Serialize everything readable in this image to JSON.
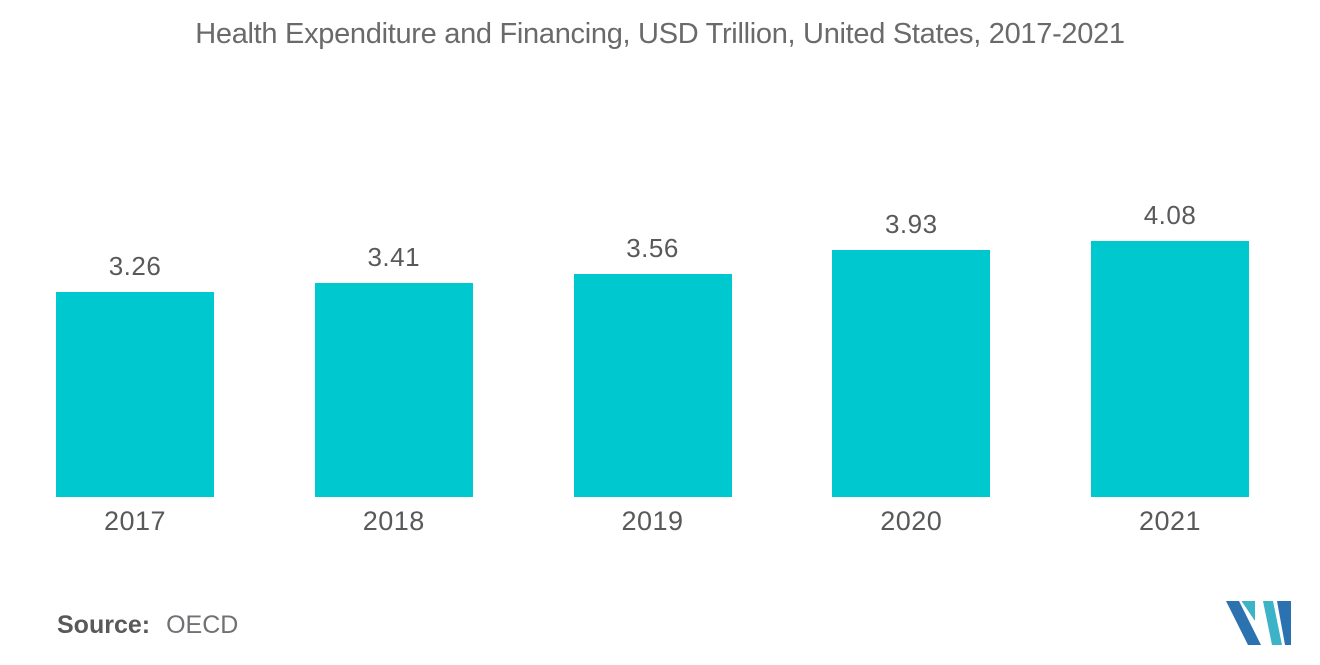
{
  "title": "Health Expenditure and Financing, USD Trillion, United States, 2017-2021",
  "source": {
    "label": "Source:",
    "value": "OECD"
  },
  "colors": {
    "bar": "#00c8cf",
    "title_text": "#6a6a6a",
    "label_text": "#58595b",
    "logo_blue": "#2d72b0",
    "logo_teal": "#3cb3c6"
  },
  "logo": {
    "name": "mordor-intelligence-logo"
  },
  "chart_data": {
    "type": "bar",
    "title": "Health Expenditure and Financing, USD Trillion, United States, 2017-2021",
    "categories": [
      "2017",
      "2018",
      "2019",
      "2020",
      "2021"
    ],
    "values": [
      3.26,
      3.41,
      3.56,
      3.93,
      4.08
    ],
    "value_labels": [
      "3.26",
      "3.41",
      "3.56",
      "3.93",
      "4.08"
    ],
    "xlabel": "",
    "ylabel": "",
    "ylim": [
      0,
      4.4
    ],
    "grid": false,
    "legend": false,
    "data_labels": "above-bars",
    "bar_color": "#00c8cf"
  }
}
